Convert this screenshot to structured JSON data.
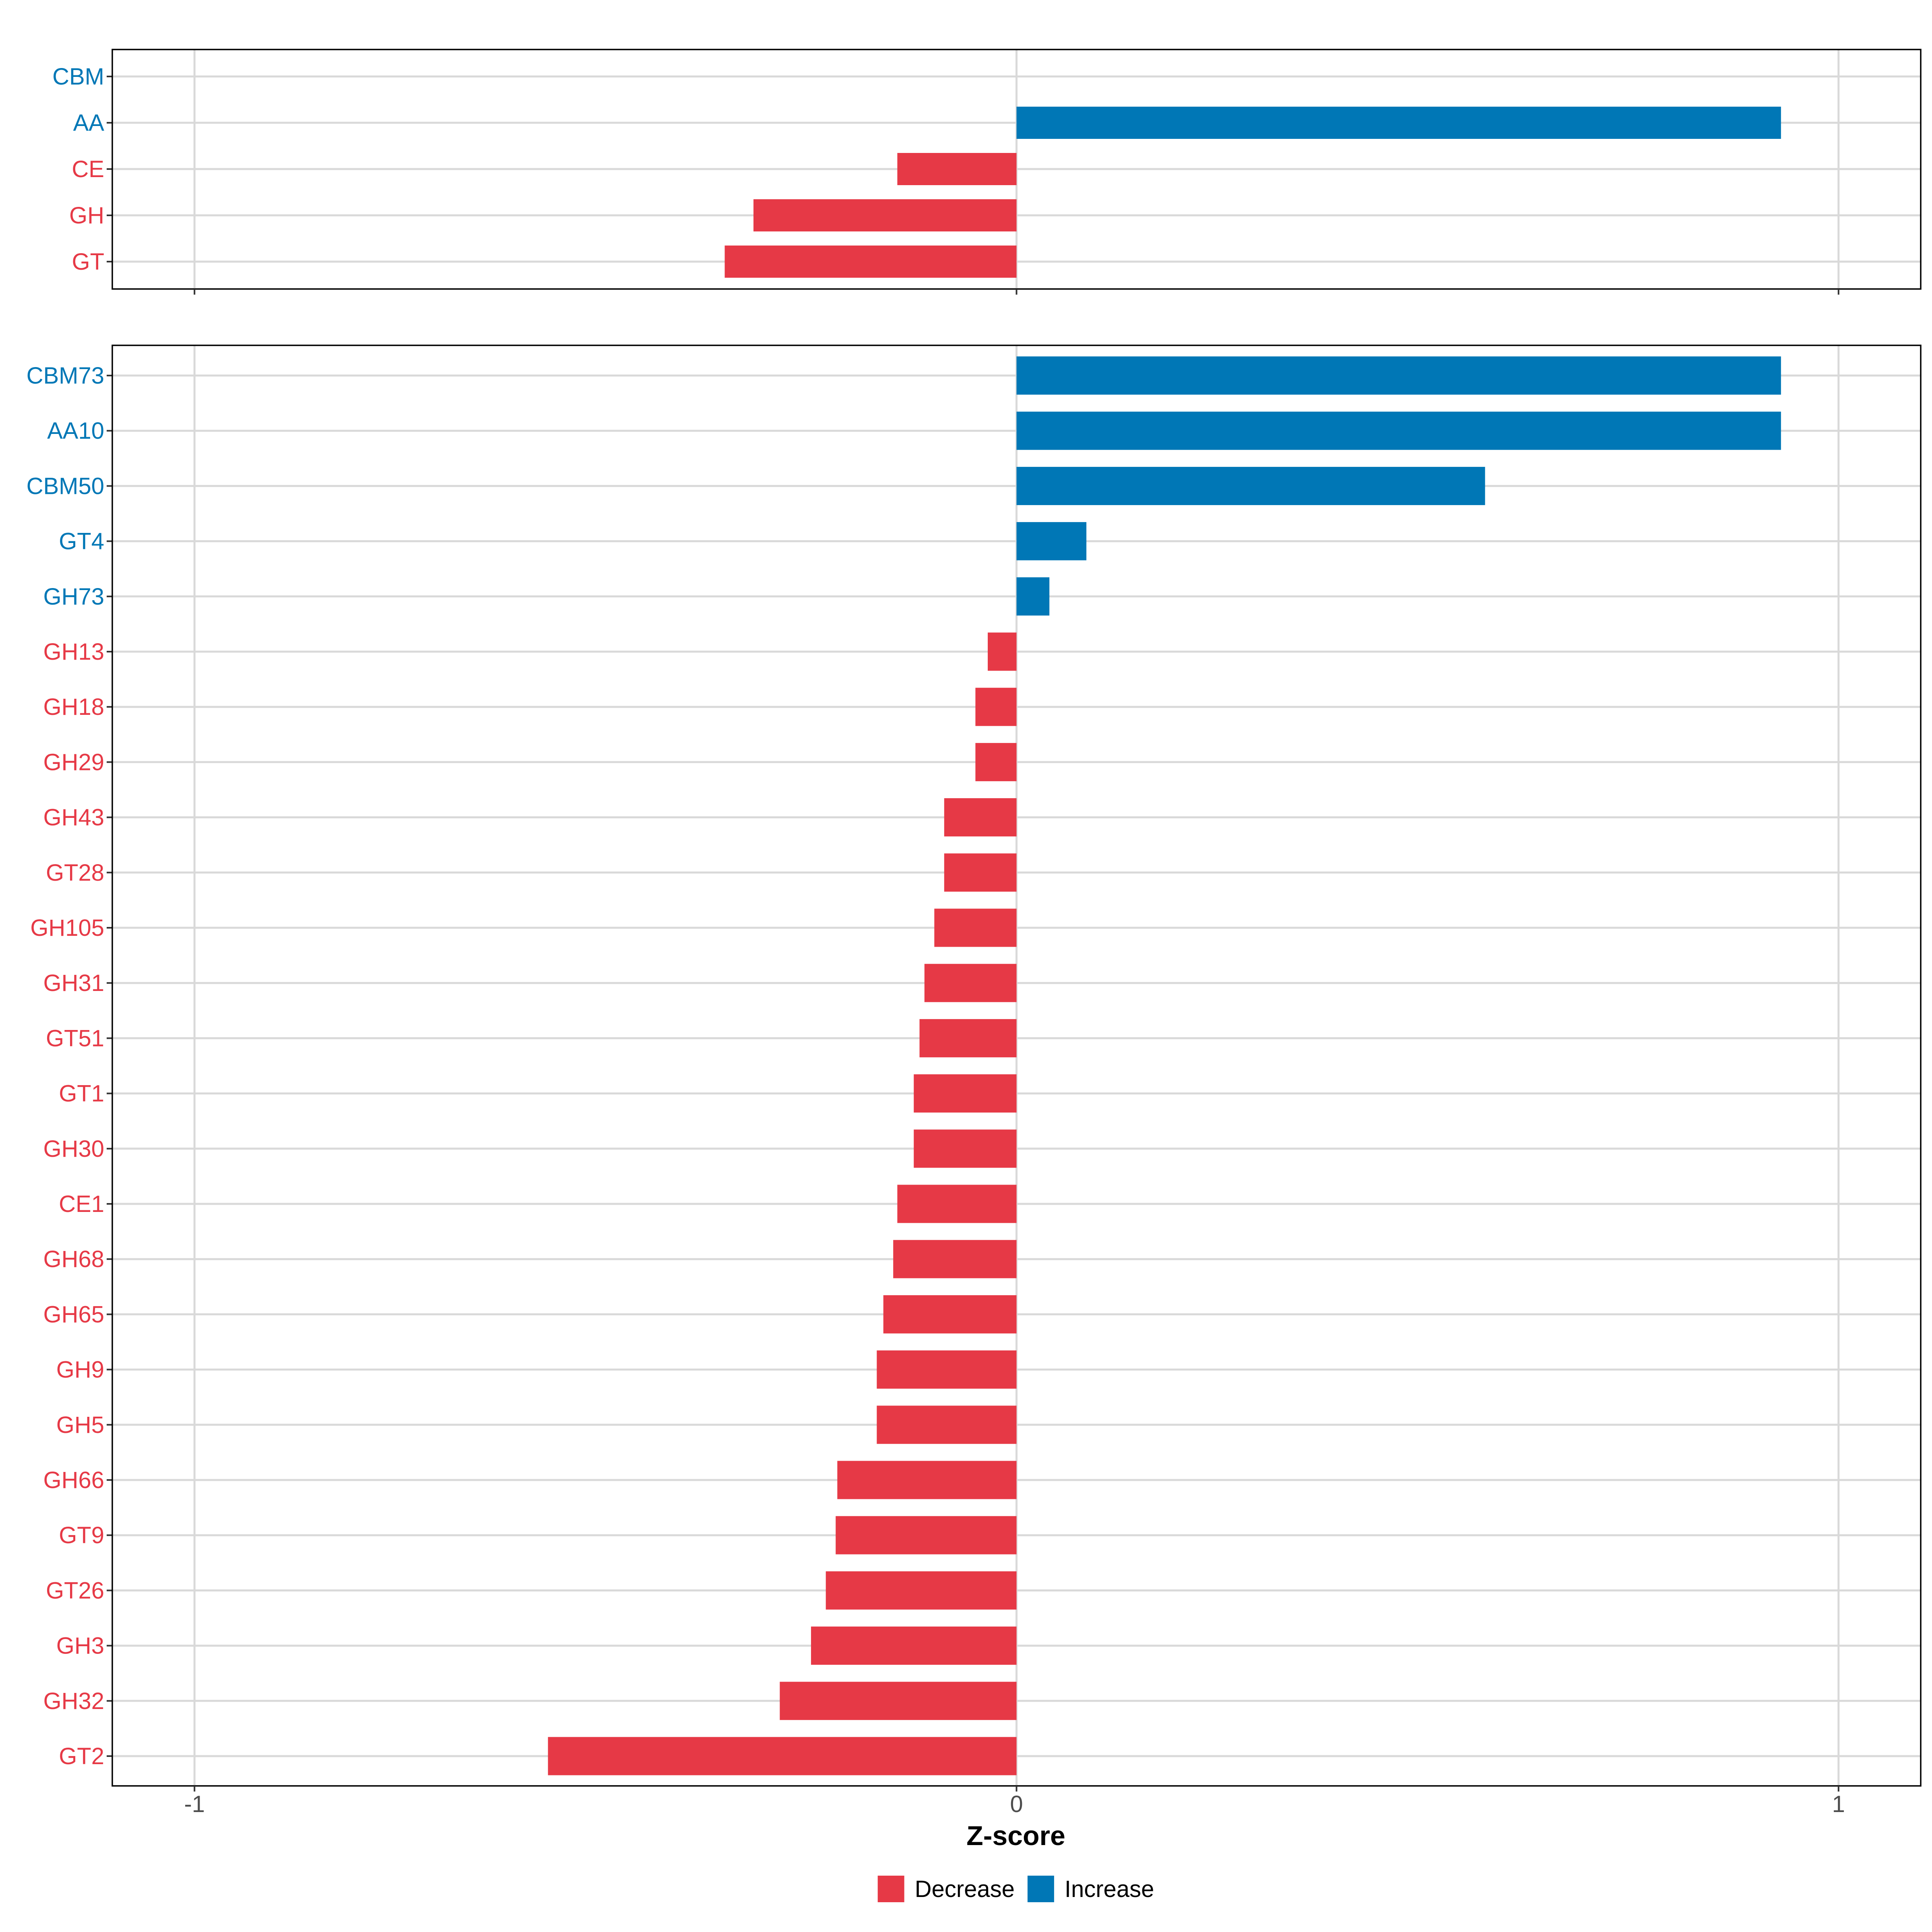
{
  "chart_data": [
    {
      "type": "bar",
      "orientation": "horizontal",
      "panel": "top",
      "categories": [
        "CBM",
        "AA",
        "CE",
        "GH",
        "GT"
      ],
      "values": [
        0,
        0.93,
        -0.145,
        -0.32,
        -0.355
      ],
      "directions": [
        "Increase",
        "Increase",
        "Decrease",
        "Decrease",
        "Decrease"
      ],
      "xlim": [
        -1.1,
        1.1
      ],
      "grid": true
    },
    {
      "type": "bar",
      "orientation": "horizontal",
      "panel": "bottom",
      "categories": [
        "CBM73",
        "AA10",
        "CBM50",
        "GT4",
        "GH73",
        "GH13",
        "GH18",
        "GH29",
        "GH43",
        "GT28",
        "GH105",
        "GH31",
        "GT51",
        "GT1",
        "GH30",
        "CE1",
        "GH68",
        "GH65",
        "GH9",
        "GH5",
        "GH66",
        "GT9",
        "GT26",
        "GH3",
        "GH32",
        "GT2"
      ],
      "values": [
        0.93,
        0.93,
        0.57,
        0.085,
        0.04,
        -0.035,
        -0.05,
        -0.05,
        -0.088,
        -0.088,
        -0.1,
        -0.112,
        -0.118,
        -0.125,
        -0.125,
        -0.145,
        -0.15,
        -0.162,
        -0.17,
        -0.17,
        -0.218,
        -0.22,
        -0.232,
        -0.25,
        -0.288,
        -0.57
      ],
      "directions": [
        "Increase",
        "Increase",
        "Increase",
        "Increase",
        "Increase",
        "Decrease",
        "Decrease",
        "Decrease",
        "Decrease",
        "Decrease",
        "Decrease",
        "Decrease",
        "Decrease",
        "Decrease",
        "Decrease",
        "Decrease",
        "Decrease",
        "Decrease",
        "Decrease",
        "Decrease",
        "Decrease",
        "Decrease",
        "Decrease",
        "Decrease",
        "Decrease",
        "Decrease"
      ],
      "xlim": [
        -1.1,
        1.1
      ],
      "xticks": [
        -1,
        0,
        1
      ],
      "xtick_labels": [
        "-1",
        "0",
        "1"
      ],
      "xlabel": "Z-score",
      "grid": true
    }
  ],
  "legend": {
    "placement": "bottom",
    "items": [
      {
        "label": "Decrease",
        "color": "#e63946"
      },
      {
        "label": "Increase",
        "color": "#0077b6"
      }
    ]
  },
  "colors": {
    "Decrease": "#e63946",
    "Increase": "#0077b6"
  }
}
